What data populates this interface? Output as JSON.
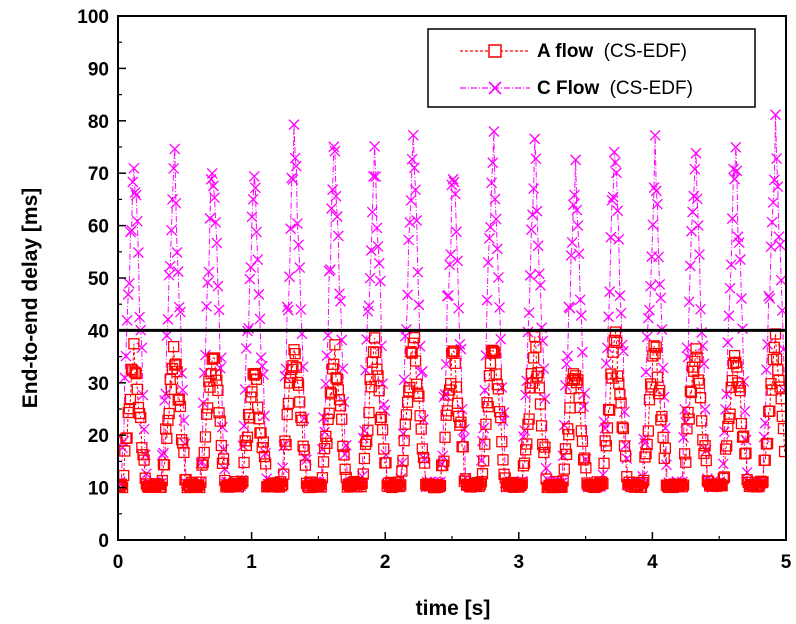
{
  "chart_data": {
    "type": "scatter",
    "xlabel": "time [s]",
    "ylabel": "End-to-end delay [ms]",
    "xlim": [
      0,
      5
    ],
    "ylim": [
      0,
      100
    ],
    "x_ticks": [
      "0",
      "1",
      "2",
      "3",
      "4",
      "5"
    ],
    "y_ticks": [
      "0",
      "10",
      "20",
      "30",
      "40",
      "50",
      "60",
      "70",
      "80",
      "90",
      "100"
    ],
    "grid": false,
    "legend_position": "top-right",
    "reference_line": {
      "y": 40,
      "color": "#000000"
    },
    "series": [
      {
        "name_bold": "A flow",
        "name_rest": "(CS-EDF)",
        "marker": "square",
        "line_style": "dashed",
        "color": "#ff0000",
        "min_value": 10,
        "peaks": [
          {
            "x": 0.12,
            "y": 36
          },
          {
            "x": 0.42,
            "y": 37
          },
          {
            "x": 0.71,
            "y": 38
          },
          {
            "x": 1.02,
            "y": 33
          },
          {
            "x": 1.32,
            "y": 39
          },
          {
            "x": 1.62,
            "y": 36
          },
          {
            "x": 1.92,
            "y": 38
          },
          {
            "x": 2.21,
            "y": 39
          },
          {
            "x": 2.51,
            "y": 37
          },
          {
            "x": 2.81,
            "y": 38
          },
          {
            "x": 3.12,
            "y": 37
          },
          {
            "x": 3.42,
            "y": 34
          },
          {
            "x": 3.72,
            "y": 39
          },
          {
            "x": 4.02,
            "y": 38
          },
          {
            "x": 4.32,
            "y": 37
          },
          {
            "x": 4.62,
            "y": 37
          },
          {
            "x": 4.92,
            "y": 38
          }
        ]
      },
      {
        "name_bold": "C Flow",
        "name_rest": "(CS-EDF)",
        "marker": "x",
        "line_style": "dash-dot",
        "color": "#ff00ff",
        "min_value": 10,
        "peaks": [
          {
            "x": 0.12,
            "y": 74
          },
          {
            "x": 0.42,
            "y": 74
          },
          {
            "x": 0.71,
            "y": 73
          },
          {
            "x": 1.02,
            "y": 71
          },
          {
            "x": 1.32,
            "y": 79
          },
          {
            "x": 1.62,
            "y": 74
          },
          {
            "x": 1.92,
            "y": 76
          },
          {
            "x": 2.21,
            "y": 77
          },
          {
            "x": 2.51,
            "y": 71
          },
          {
            "x": 2.81,
            "y": 78
          },
          {
            "x": 3.12,
            "y": 74
          },
          {
            "x": 3.42,
            "y": 72
          },
          {
            "x": 3.72,
            "y": 77
          },
          {
            "x": 4.02,
            "y": 74
          },
          {
            "x": 4.32,
            "y": 74
          },
          {
            "x": 4.62,
            "y": 76
          },
          {
            "x": 4.92,
            "y": 78
          }
        ]
      }
    ]
  }
}
